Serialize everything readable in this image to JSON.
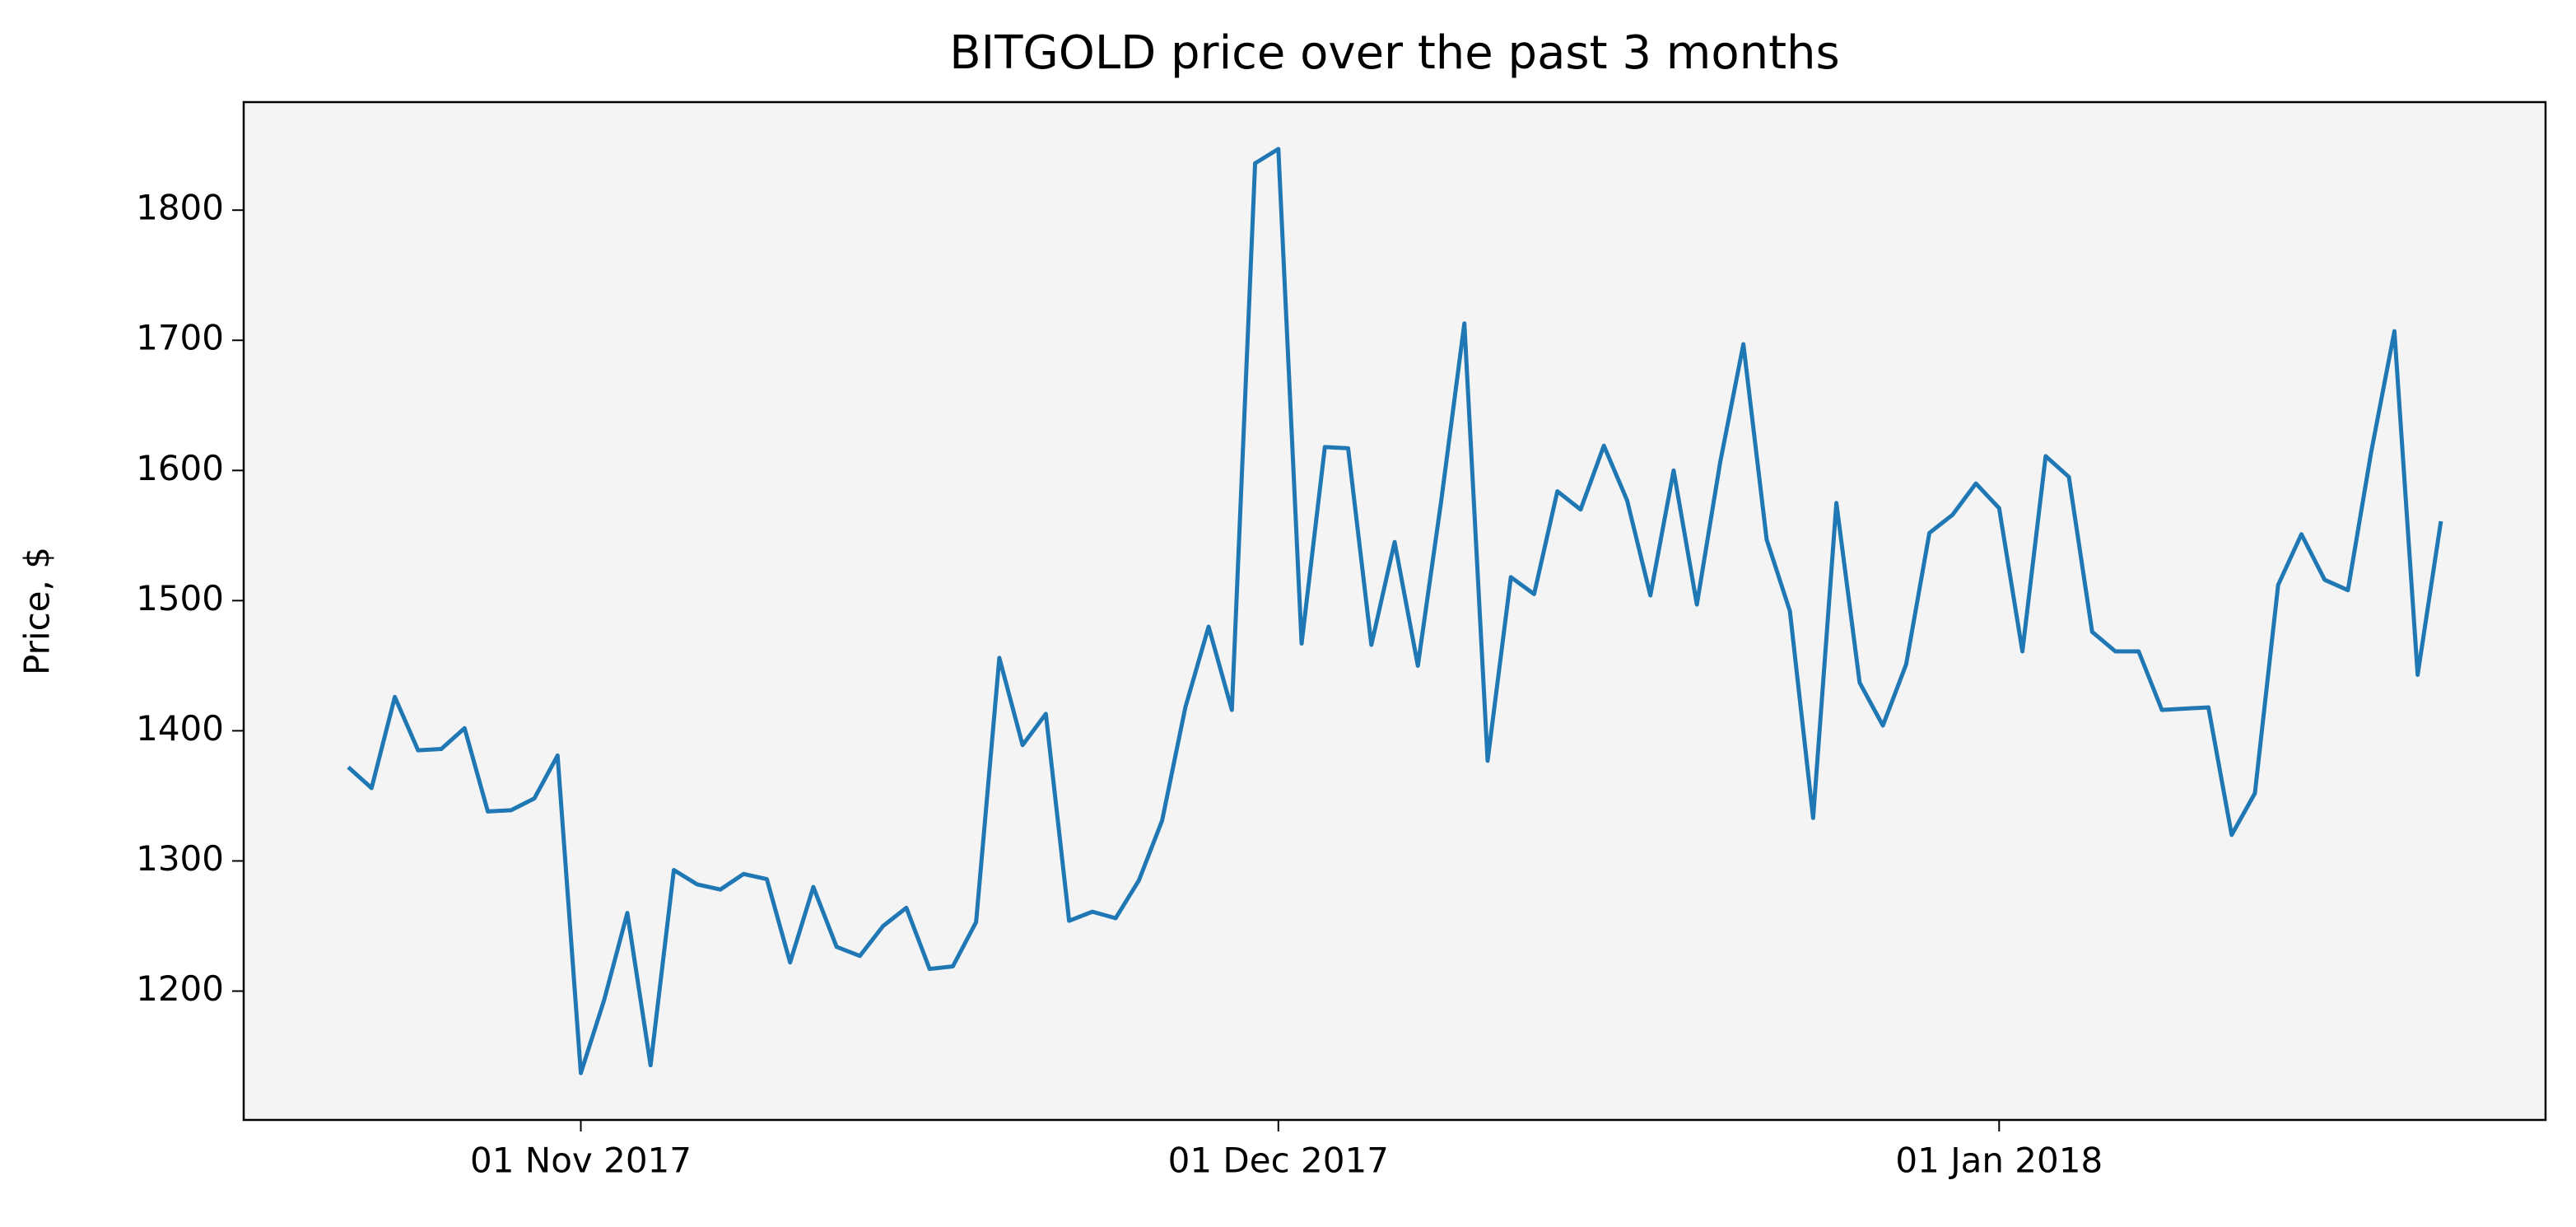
{
  "chart_data": {
    "type": "line",
    "title": "BITGOLD price over the past 3 months",
    "ylabel": "Price, $",
    "color": "#1f77b4",
    "x": [
      "2017-10-22",
      "2017-10-23",
      "2017-10-24",
      "2017-10-25",
      "2017-10-26",
      "2017-10-27",
      "2017-10-28",
      "2017-10-29",
      "2017-10-30",
      "2017-10-31",
      "2017-11-01",
      "2017-11-02",
      "2017-11-03",
      "2017-11-04",
      "2017-11-05",
      "2017-11-06",
      "2017-11-07",
      "2017-11-08",
      "2017-11-09",
      "2017-11-10",
      "2017-11-11",
      "2017-11-12",
      "2017-11-13",
      "2017-11-14",
      "2017-11-15",
      "2017-11-16",
      "2017-11-17",
      "2017-11-18",
      "2017-11-19",
      "2017-11-20",
      "2017-11-21",
      "2017-11-22",
      "2017-11-23",
      "2017-11-24",
      "2017-11-25",
      "2017-11-26",
      "2017-11-27",
      "2017-11-28",
      "2017-11-29",
      "2017-11-30",
      "2017-12-01",
      "2017-12-02",
      "2017-12-03",
      "2017-12-04",
      "2017-12-05",
      "2017-12-06",
      "2017-12-07",
      "2017-12-08",
      "2017-12-09",
      "2017-12-10",
      "2017-12-11",
      "2017-12-12",
      "2017-12-13",
      "2017-12-14",
      "2017-12-15",
      "2017-12-16",
      "2017-12-17",
      "2017-12-18",
      "2017-12-19",
      "2017-12-20",
      "2017-12-21",
      "2017-12-22",
      "2017-12-23",
      "2017-12-24",
      "2017-12-25",
      "2017-12-26",
      "2017-12-27",
      "2017-12-28",
      "2017-12-29",
      "2017-12-30",
      "2017-12-31",
      "2018-01-01",
      "2018-01-02",
      "2018-01-03",
      "2018-01-04",
      "2018-01-05",
      "2018-01-06",
      "2018-01-07",
      "2018-01-08",
      "2018-01-09",
      "2018-01-10",
      "2018-01-11",
      "2018-01-12",
      "2018-01-13",
      "2018-01-14",
      "2018-01-15",
      "2018-01-16",
      "2018-01-17",
      "2018-01-18",
      "2018-01-19",
      "2018-01-20"
    ],
    "values": [
      1372,
      1356,
      1426,
      1385,
      1386,
      1402,
      1338,
      1339,
      1348,
      1381,
      1137,
      1193,
      1260,
      1143,
      1293,
      1282,
      1278,
      1290,
      1286,
      1222,
      1280,
      1234,
      1227,
      1250,
      1264,
      1217,
      1219,
      1253,
      1456,
      1389,
      1413,
      1254,
      1261,
      1256,
      1285,
      1331,
      1418,
      1480,
      1416,
      1836,
      1847,
      1467,
      1618,
      1617,
      1466,
      1545,
      1450,
      1576,
      1713,
      1377,
      1518,
      1505,
      1584,
      1570,
      1619,
      1577,
      1504,
      1600,
      1497,
      1606,
      1697,
      1547,
      1492,
      1333,
      1575,
      1437,
      1404,
      1451,
      1552,
      1566,
      1590,
      1571,
      1461,
      1611,
      1595,
      1476,
      1461,
      1461,
      1416,
      1417,
      1418,
      1320,
      1352,
      1512,
      1551,
      1516,
      1508,
      1614,
      1707,
      1443,
      1561
    ],
    "xlim": [
      "2017-10-17T12:00",
      "2018-01-24T12:00"
    ],
    "xticks": [
      {
        "value": "2017-11-01",
        "label": "01 Nov 2017"
      },
      {
        "value": "2017-12-01",
        "label": "01 Dec 2017"
      },
      {
        "value": "2018-01-01",
        "label": "01 Jan 2018"
      }
    ],
    "ylim": [
      1101,
      1883
    ],
    "yticks": [
      1200,
      1300,
      1400,
      1500,
      1600,
      1700,
      1800
    ],
    "grid": false,
    "background": "#f4f4f4"
  }
}
